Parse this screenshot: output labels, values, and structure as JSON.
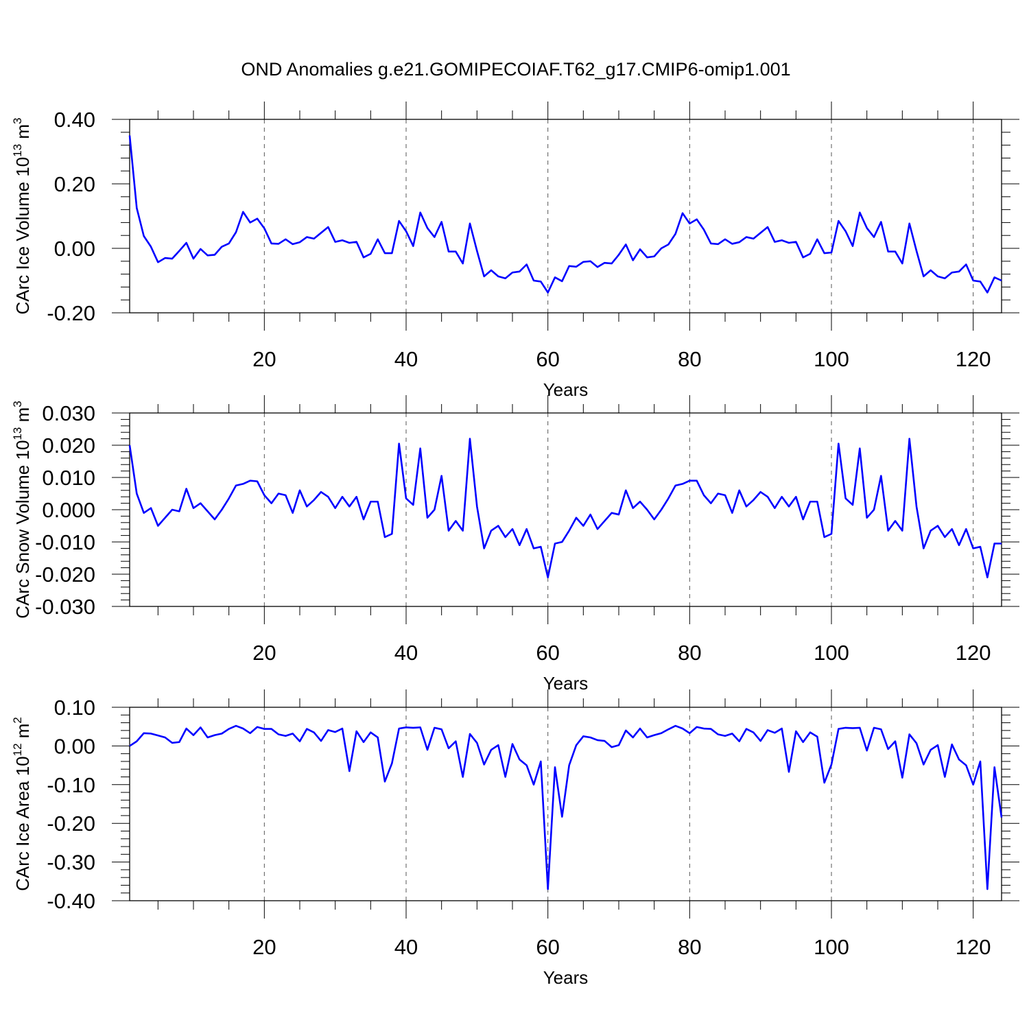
{
  "title": "OND Anomalies g.e21.GOMIPECOIAF.T62_g17.CMIP6-omip1.001",
  "colors": {
    "line": "#0000ff",
    "axis": "#000000",
    "grid": "#555555"
  },
  "chart_data": [
    {
      "type": "line",
      "ylabel": "CArc Ice Volume 10",
      "ylabel_exp": "13",
      "ylabel_unit": " m",
      "ylabel_unit_exp": "3",
      "xlabel": "Years",
      "xlim": [
        1,
        124
      ],
      "ylim": [
        -0.2,
        0.4
      ],
      "yticks": [
        -0.2,
        0.0,
        0.2,
        0.4
      ],
      "ytick_labels": [
        "-0.20",
        "0.00",
        "0.20",
        "0.40"
      ],
      "xticks": [
        20,
        40,
        60,
        80,
        100,
        120
      ],
      "xtick_labels": [
        "20",
        "40",
        "60",
        "80",
        "100",
        "120"
      ],
      "series": [
        {
          "name": "CArc Ice Volume",
          "values": [
            0.35,
            0.125,
            0.038,
            0.005,
            -0.043,
            -0.03,
            -0.032,
            -0.008,
            0.017,
            -0.032,
            -0.002,
            -0.022,
            -0.02,
            0.005,
            0.015,
            0.05,
            0.113,
            0.08,
            0.092,
            0.062,
            0.015,
            0.014,
            0.028,
            0.013,
            0.019,
            0.035,
            0.03,
            0.048,
            0.066,
            0.02,
            0.025,
            0.017,
            0.02,
            -0.028,
            -0.017,
            0.028,
            -0.015,
            -0.015,
            0.085,
            0.053,
            0.007,
            0.111,
            0.063,
            0.035,
            0.082,
            -0.01,
            -0.01,
            -0.047,
            0.077,
            -0.008,
            -0.087,
            -0.068,
            -0.087,
            -0.093,
            -0.075,
            -0.072,
            -0.05,
            -0.1,
            -0.103,
            -0.137,
            -0.09,
            -0.102,
            -0.055,
            -0.057,
            -0.042,
            -0.04,
            -0.058,
            -0.045,
            -0.047,
            -0.02,
            0.012,
            -0.037,
            -0.003,
            -0.028,
            -0.025,
            0.0,
            0.012,
            0.045,
            0.109,
            0.077,
            0.09,
            0.058,
            0.015,
            0.013,
            0.028,
            0.014,
            0.019,
            0.035,
            0.03,
            0.048,
            0.066,
            0.02,
            0.025,
            0.017,
            0.02,
            -0.028,
            -0.017,
            0.028,
            -0.015,
            -0.013,
            0.085,
            0.053,
            0.007,
            0.111,
            0.063,
            0.035,
            0.082,
            -0.01,
            -0.01,
            -0.047,
            0.077,
            -0.008,
            -0.087,
            -0.068,
            -0.087,
            -0.093,
            -0.075,
            -0.072,
            -0.05,
            -0.1,
            -0.103,
            -0.137,
            -0.09,
            -0.1
          ]
        }
      ]
    },
    {
      "type": "line",
      "ylabel": "CArc Snow Volume 10",
      "ylabel_exp": "13",
      "ylabel_unit": " m",
      "ylabel_unit_exp": "3",
      "xlabel": "Years",
      "xlim": [
        1,
        124
      ],
      "ylim": [
        -0.03,
        0.03
      ],
      "yticks": [
        -0.03,
        -0.02,
        -0.01,
        0.0,
        0.01,
        0.02,
        0.03
      ],
      "ytick_labels": [
        "-0.030",
        "-0.020",
        "-0.010",
        "0.000",
        "0.010",
        "0.020",
        "0.030"
      ],
      "xticks": [
        20,
        40,
        60,
        80,
        100,
        120
      ],
      "xtick_labels": [
        "20",
        "40",
        "60",
        "80",
        "100",
        "120"
      ],
      "series": [
        {
          "name": "CArc Snow Volume",
          "values": [
            0.02,
            0.005,
            -0.001,
            0.0005,
            -0.005,
            -0.0025,
            0.0,
            -0.0005,
            0.0065,
            0.0005,
            0.002,
            -0.0005,
            -0.003,
            0.0,
            0.0035,
            0.0075,
            0.008,
            0.009,
            0.0088,
            0.0045,
            0.002,
            0.005,
            0.0045,
            -0.001,
            0.006,
            0.001,
            0.003,
            0.0055,
            0.004,
            0.0005,
            0.004,
            0.001,
            0.004,
            -0.003,
            0.0025,
            0.0025,
            -0.0085,
            -0.0075,
            0.0205,
            0.0035,
            0.0015,
            0.019,
            -0.0025,
            0.0,
            0.0105,
            -0.0065,
            -0.0035,
            -0.0065,
            0.022,
            0.001,
            -0.012,
            -0.0065,
            -0.005,
            -0.0085,
            -0.006,
            -0.011,
            -0.006,
            -0.012,
            -0.0115,
            -0.021,
            -0.0105,
            -0.01,
            -0.0065,
            -0.0025,
            -0.005,
            -0.0015,
            -0.006,
            -0.0035,
            -0.001,
            -0.0015,
            0.006,
            0.0005,
            0.0025,
            0.0,
            -0.003,
            0.0,
            0.0035,
            0.0075,
            0.008,
            0.009,
            0.009,
            0.0045,
            0.002,
            0.005,
            0.0045,
            -0.001,
            0.006,
            0.001,
            0.003,
            0.0055,
            0.004,
            0.0005,
            0.004,
            0.001,
            0.004,
            -0.003,
            0.0025,
            0.0025,
            -0.0085,
            -0.0075,
            0.0205,
            0.0035,
            0.0015,
            0.019,
            -0.0025,
            0.0,
            0.0105,
            -0.0065,
            -0.0035,
            -0.0065,
            0.022,
            0.001,
            -0.012,
            -0.0065,
            -0.005,
            -0.0085,
            -0.006,
            -0.011,
            -0.006,
            -0.012,
            -0.0115,
            -0.021,
            -0.0105,
            -0.0105
          ]
        }
      ]
    },
    {
      "type": "line",
      "ylabel": "CArc Ice Area 10",
      "ylabel_exp": "12",
      "ylabel_unit": " m",
      "ylabel_unit_exp": "2",
      "xlabel": "Years",
      "xlim": [
        1,
        124
      ],
      "ylim": [
        -0.4,
        0.1
      ],
      "yticks": [
        -0.4,
        -0.3,
        -0.2,
        -0.1,
        0.0,
        0.1
      ],
      "ytick_labels": [
        "-0.40",
        "-0.30",
        "-0.20",
        "-0.10",
        "0.00",
        "0.10"
      ],
      "xticks": [
        20,
        40,
        60,
        80,
        100,
        120
      ],
      "xtick_labels": [
        "20",
        "40",
        "60",
        "80",
        "100",
        "120"
      ],
      "series": [
        {
          "name": "CArc Ice Area",
          "values": [
            0.0,
            0.012,
            0.033,
            0.032,
            0.027,
            0.022,
            0.008,
            0.01,
            0.045,
            0.028,
            0.048,
            0.022,
            0.028,
            0.032,
            0.044,
            0.052,
            0.045,
            0.033,
            0.049,
            0.044,
            0.044,
            0.03,
            0.026,
            0.032,
            0.012,
            0.044,
            0.035,
            0.013,
            0.041,
            0.036,
            0.045,
            -0.065,
            0.038,
            0.01,
            0.035,
            0.022,
            -0.092,
            -0.045,
            0.045,
            0.048,
            0.047,
            0.048,
            -0.01,
            0.047,
            0.043,
            -0.006,
            0.012,
            -0.08,
            0.031,
            0.008,
            -0.048,
            -0.01,
            0.002,
            -0.08,
            0.005,
            -0.035,
            -0.05,
            -0.1,
            -0.04,
            -0.37,
            -0.055,
            -0.183,
            -0.05,
            0.002,
            0.025,
            0.022,
            0.015,
            0.013,
            -0.003,
            0.002,
            0.04,
            0.022,
            0.045,
            0.022,
            0.028,
            0.033,
            0.043,
            0.052,
            0.045,
            0.033,
            0.049,
            0.045,
            0.044,
            0.03,
            0.026,
            0.032,
            0.012,
            0.044,
            0.035,
            0.013,
            0.041,
            0.034,
            0.045,
            -0.067,
            0.038,
            0.01,
            0.035,
            0.024,
            -0.095,
            -0.048,
            0.044,
            0.047,
            0.046,
            0.047,
            -0.012,
            0.047,
            0.043,
            -0.008,
            0.012,
            -0.082,
            0.03,
            0.007,
            -0.048,
            -0.01,
            0.002,
            -0.08,
            0.004,
            -0.035,
            -0.05,
            -0.1,
            -0.04,
            -0.37,
            -0.055,
            -0.185
          ]
        }
      ]
    }
  ]
}
